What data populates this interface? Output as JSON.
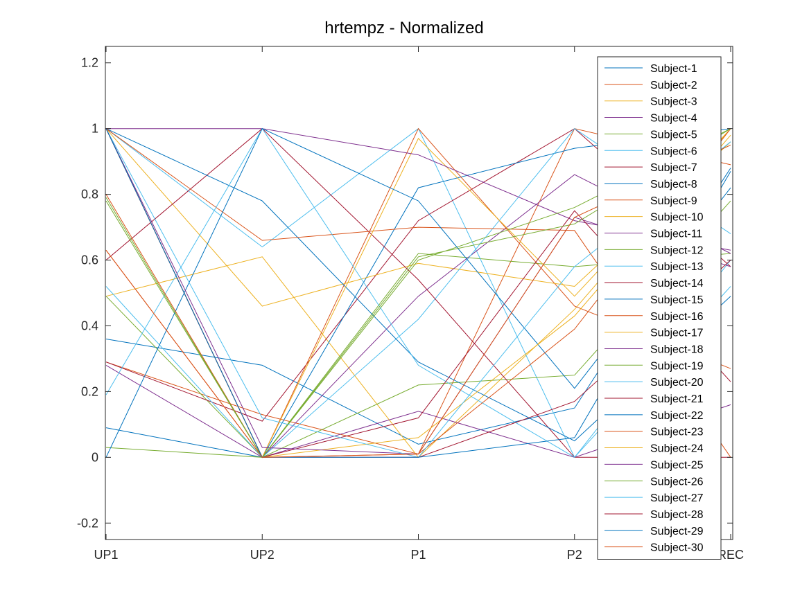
{
  "chart_data": {
    "type": "line",
    "title": "hrtempz - Normalized",
    "xlabel": "",
    "ylabel": "",
    "categories": [
      "UP1",
      "UP2",
      "P1",
      "P2",
      "REC"
    ],
    "ylim": [
      -0.25,
      1.25
    ],
    "yticks": [
      -0.2,
      0,
      0.2,
      0.4,
      0.6,
      0.8,
      1,
      1.2
    ],
    "ytick_labels": [
      "-0.2",
      "0",
      "0.2",
      "0.4",
      "0.6",
      "0.8",
      "1",
      "1.2"
    ],
    "grid": false,
    "legend_position": "top-right",
    "series": [
      {
        "name": "Subject-1",
        "color": "#0072BD",
        "values": [
          0.36,
          0.28,
          0.04,
          0.15,
          0.88
        ]
      },
      {
        "name": "Subject-2",
        "color": "#D95319",
        "values": [
          0.29,
          0.13,
          0.01,
          1.0,
          0.89
        ]
      },
      {
        "name": "Subject-3",
        "color": "#EDB120",
        "values": [
          0.49,
          0.61,
          0.0,
          0.45,
          1.0
        ]
      },
      {
        "name": "Subject-4",
        "color": "#7E2F8E",
        "values": [
          0.28,
          0.0,
          0.14,
          0.0,
          0.16
        ]
      },
      {
        "name": "Subject-5",
        "color": "#77AC30",
        "values": [
          0.49,
          0.0,
          0.62,
          0.58,
          0.62
        ]
      },
      {
        "name": "Subject-6",
        "color": "#4DBEEE",
        "values": [
          1.0,
          0.64,
          1.0,
          0.0,
          0.52
        ]
      },
      {
        "name": "Subject-7",
        "color": "#A2142F",
        "values": [
          0.29,
          0.11,
          0.72,
          1.0,
          0.58
        ]
      },
      {
        "name": "Subject-8",
        "color": "#0072BD",
        "values": [
          0.09,
          0.0,
          0.82,
          0.94,
          1.0
        ]
      },
      {
        "name": "Subject-9",
        "color": "#D95319",
        "values": [
          0.63,
          0.0,
          1.0,
          0.46,
          0.27
        ]
      },
      {
        "name": "Subject-10",
        "color": "#EDB120",
        "values": [
          1.0,
          0.46,
          0.59,
          0.52,
          0.96
        ]
      },
      {
        "name": "Subject-11",
        "color": "#7E2F8E",
        "values": [
          1.0,
          0.0,
          0.49,
          0.86,
          0.62
        ]
      },
      {
        "name": "Subject-12",
        "color": "#77AC30",
        "values": [
          0.78,
          0.0,
          0.22,
          0.25,
          0.78
        ]
      },
      {
        "name": "Subject-13",
        "color": "#4DBEEE",
        "values": [
          0.52,
          0.0,
          0.42,
          1.0,
          0.68
        ]
      },
      {
        "name": "Subject-14",
        "color": "#A2142F",
        "values": [
          0.6,
          1.0,
          0.54,
          0.0,
          0.0
        ]
      },
      {
        "name": "Subject-15",
        "color": "#0072BD",
        "values": [
          1.0,
          0.78,
          0.29,
          0.05,
          0.49
        ]
      },
      {
        "name": "Subject-16",
        "color": "#D95319",
        "values": [
          1.0,
          0.66,
          0.7,
          0.69,
          0.0
        ]
      },
      {
        "name": "Subject-17",
        "color": "#EDB120",
        "values": [
          1.0,
          0.0,
          0.97,
          0.49,
          1.0
        ]
      },
      {
        "name": "Subject-18",
        "color": "#7E2F8E",
        "values": [
          1.0,
          1.0,
          0.92,
          0.72,
          0.63
        ]
      },
      {
        "name": "Subject-19",
        "color": "#77AC30",
        "values": [
          0.03,
          0.0,
          0.6,
          0.76,
          1.0
        ]
      },
      {
        "name": "Subject-20",
        "color": "#4DBEEE",
        "values": [
          0.19,
          1.0,
          0.28,
          0.0,
          0.6
        ]
      },
      {
        "name": "Subject-21",
        "color": "#A2142F",
        "values": [
          1.0,
          0.0,
          0.12,
          0.75,
          0.23
        ]
      },
      {
        "name": "Subject-22",
        "color": "#0072BD",
        "values": [
          0.0,
          1.0,
          0.78,
          0.21,
          0.82
        ]
      },
      {
        "name": "Subject-23",
        "color": "#D95319",
        "values": [
          0.8,
          0.0,
          0.01,
          0.39,
          1.0
        ]
      },
      {
        "name": "Subject-24",
        "color": "#EDB120",
        "values": [
          1.0,
          0.0,
          0.06,
          0.43,
          0.98
        ]
      },
      {
        "name": "Subject-25",
        "color": "#7E2F8E",
        "values": [
          1.0,
          0.03,
          0.01,
          0.73,
          0.58
        ]
      },
      {
        "name": "Subject-26",
        "color": "#77AC30",
        "values": [
          0.79,
          0.0,
          0.61,
          0.71,
          1.0
        ]
      },
      {
        "name": "Subject-27",
        "color": "#4DBEEE",
        "values": [
          1.0,
          0.12,
          0.0,
          0.58,
          0.96
        ]
      },
      {
        "name": "Subject-28",
        "color": "#A2142F",
        "values": [
          1.0,
          0.0,
          0.0,
          0.17,
          0.6
        ]
      },
      {
        "name": "Subject-29",
        "color": "#0072BD",
        "values": [
          1.0,
          0.0,
          0.0,
          0.06,
          0.87
        ]
      },
      {
        "name": "Subject-30",
        "color": "#D95319",
        "values": [
          0.63,
          0.0,
          0.01,
          0.73,
          0.95
        ]
      }
    ]
  }
}
